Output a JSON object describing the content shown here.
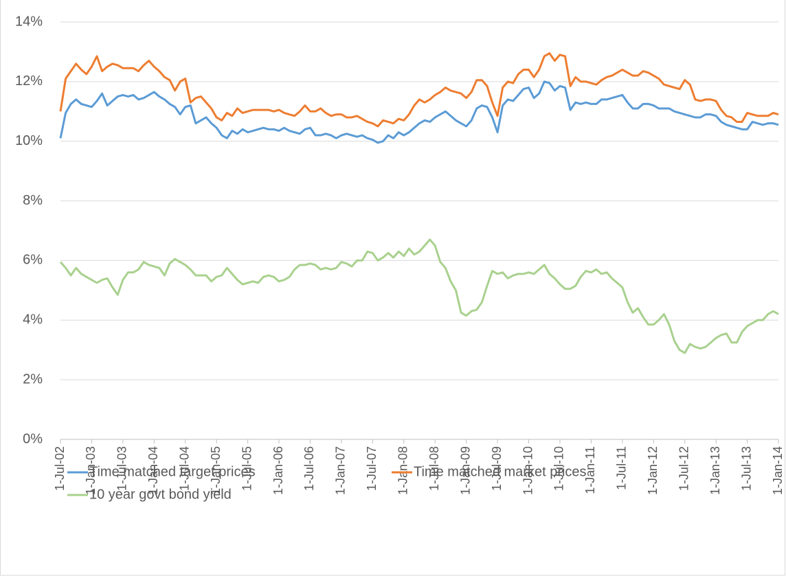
{
  "chart_data": {
    "type": "line",
    "categories": [
      "1-Jul-02",
      null,
      null,
      null,
      null,
      null,
      "1-Jan-03",
      null,
      null,
      null,
      null,
      null,
      "1-Jul-03",
      null,
      null,
      null,
      null,
      null,
      "1-Jan-04",
      null,
      null,
      null,
      null,
      null,
      "1-Jul-04",
      null,
      null,
      null,
      null,
      null,
      "1-Jan-05",
      null,
      null,
      null,
      null,
      null,
      "1-Jul-05",
      null,
      null,
      null,
      null,
      null,
      "1-Jan-06",
      null,
      null,
      null,
      null,
      null,
      "1-Jul-06",
      null,
      null,
      null,
      null,
      null,
      "1-Jan-07",
      null,
      null,
      null,
      null,
      null,
      "1-Jul-07",
      null,
      null,
      null,
      null,
      null,
      "1-Jan-08",
      null,
      null,
      null,
      null,
      null,
      "1-Jul-08",
      null,
      null,
      null,
      null,
      null,
      "1-Jan-09",
      null,
      null,
      null,
      null,
      null,
      "1-Jul-09",
      null,
      null,
      null,
      null,
      null,
      "1-Jan-10",
      null,
      null,
      null,
      null,
      null,
      "1-Jul-10",
      null,
      null,
      null,
      null,
      null,
      "1-Jan-11",
      null,
      null,
      null,
      null,
      null,
      "1-Jul-11",
      null,
      null,
      null,
      null,
      null,
      "1-Jan-12",
      null,
      null,
      null,
      null,
      null,
      "1-Jul-12",
      null,
      null,
      null,
      null,
      null,
      "1-Jan-13",
      null,
      null,
      null,
      null,
      null,
      "1-Jul-13",
      null,
      null,
      null,
      null,
      null,
      "1-Jan-14"
    ],
    "series": [
      {
        "name": "Time matched target prices",
        "color": "#5b9bd5",
        "values": [
          10.1,
          10.95,
          11.25,
          11.4,
          11.25,
          11.2,
          11.15,
          11.35,
          11.6,
          11.2,
          11.35,
          11.5,
          11.55,
          11.5,
          11.55,
          11.4,
          11.45,
          11.55,
          11.65,
          11.5,
          11.4,
          11.25,
          11.15,
          10.9,
          11.15,
          11.2,
          10.6,
          10.7,
          10.8,
          10.6,
          10.45,
          10.2,
          10.1,
          10.35,
          10.25,
          10.4,
          10.3,
          10.35,
          10.4,
          10.45,
          10.4,
          10.4,
          10.35,
          10.45,
          10.35,
          10.3,
          10.25,
          10.4,
          10.45,
          10.2,
          10.2,
          10.25,
          10.2,
          10.1,
          10.2,
          10.25,
          10.2,
          10.15,
          10.2,
          10.1,
          10.05,
          9.95,
          10.0,
          10.2,
          10.1,
          10.3,
          10.2,
          10.3,
          10.45,
          10.6,
          10.7,
          10.65,
          10.8,
          10.9,
          11.0,
          10.85,
          10.7,
          10.6,
          10.5,
          10.7,
          11.1,
          11.2,
          11.15,
          10.8,
          10.3,
          11.2,
          11.4,
          11.35,
          11.55,
          11.75,
          11.8,
          11.45,
          11.6,
          12.0,
          11.95,
          11.7,
          11.85,
          11.8,
          11.05,
          11.3,
          11.25,
          11.3,
          11.25,
          11.25,
          11.4,
          11.4,
          11.45,
          11.5,
          11.55,
          11.3,
          11.1,
          11.1,
          11.25,
          11.25,
          11.2,
          11.1,
          11.1,
          11.1,
          11.0,
          10.95,
          10.9,
          10.85,
          10.8,
          10.8,
          10.9,
          10.9,
          10.85,
          10.65,
          10.55,
          10.5,
          10.45,
          10.4,
          10.4,
          10.65,
          10.6,
          10.55,
          10.6,
          10.6,
          10.55
        ]
      },
      {
        "name": "Time matched market prices",
        "color": "#ed7d31",
        "values": [
          11.0,
          12.1,
          12.35,
          12.6,
          12.4,
          12.25,
          12.5,
          12.85,
          12.35,
          12.5,
          12.6,
          12.55,
          12.45,
          12.45,
          12.45,
          12.35,
          12.55,
          12.7,
          12.5,
          12.35,
          12.15,
          12.05,
          11.7,
          12.0,
          12.1,
          11.3,
          11.45,
          11.5,
          11.3,
          11.1,
          10.8,
          10.7,
          10.95,
          10.85,
          11.1,
          10.95,
          11.0,
          11.05,
          11.05,
          11.05,
          11.05,
          11.0,
          11.05,
          10.95,
          10.9,
          10.85,
          11.0,
          11.2,
          11.0,
          11.0,
          11.1,
          10.95,
          10.85,
          10.9,
          10.9,
          10.8,
          10.8,
          10.85,
          10.75,
          10.65,
          10.6,
          10.5,
          10.7,
          10.65,
          10.6,
          10.75,
          10.7,
          10.9,
          11.2,
          11.4,
          11.3,
          11.4,
          11.55,
          11.65,
          11.8,
          11.7,
          11.65,
          11.6,
          11.45,
          11.65,
          12.05,
          12.05,
          11.85,
          11.3,
          10.85,
          11.8,
          12.0,
          11.95,
          12.25,
          12.4,
          12.4,
          12.15,
          12.4,
          12.85,
          12.95,
          12.7,
          12.9,
          12.85,
          11.85,
          12.15,
          12.0,
          12.0,
          11.95,
          11.9,
          12.05,
          12.15,
          12.2,
          12.3,
          12.4,
          12.3,
          12.2,
          12.2,
          12.35,
          12.3,
          12.2,
          12.1,
          11.9,
          11.85,
          11.8,
          11.75,
          12.05,
          11.9,
          11.4,
          11.35,
          11.4,
          11.4,
          11.35,
          11.05,
          10.85,
          10.8,
          10.65,
          10.65,
          10.95,
          10.9,
          10.85,
          10.85,
          10.85,
          10.95,
          10.9
        ]
      },
      {
        "name": "10 year govt bond yield",
        "color": "#a9d18e",
        "values": [
          5.95,
          5.75,
          5.5,
          5.75,
          5.55,
          5.45,
          5.35,
          5.25,
          5.35,
          5.4,
          5.1,
          4.85,
          5.35,
          5.6,
          5.6,
          5.7,
          5.95,
          5.85,
          5.8,
          5.75,
          5.5,
          5.9,
          6.05,
          5.95,
          5.85,
          5.7,
          5.5,
          5.5,
          5.5,
          5.3,
          5.45,
          5.5,
          5.75,
          5.55,
          5.35,
          5.2,
          5.25,
          5.3,
          5.25,
          5.45,
          5.5,
          5.45,
          5.3,
          5.35,
          5.45,
          5.7,
          5.85,
          5.85,
          5.9,
          5.85,
          5.7,
          5.75,
          5.7,
          5.75,
          5.95,
          5.9,
          5.8,
          6.0,
          6.0,
          6.3,
          6.25,
          6.0,
          6.1,
          6.25,
          6.1,
          6.3,
          6.15,
          6.4,
          6.2,
          6.3,
          6.5,
          6.7,
          6.5,
          5.95,
          5.75,
          5.3,
          5.0,
          4.25,
          4.15,
          4.3,
          4.35,
          4.6,
          5.15,
          5.65,
          5.55,
          5.6,
          5.4,
          5.5,
          5.55,
          5.55,
          5.6,
          5.55,
          5.7,
          5.85,
          5.55,
          5.4,
          5.2,
          5.05,
          5.05,
          5.15,
          5.45,
          5.65,
          5.6,
          5.7,
          5.55,
          5.6,
          5.4,
          5.25,
          5.1,
          4.6,
          4.25,
          4.4,
          4.1,
          3.85,
          3.85,
          4.0,
          4.2,
          3.85,
          3.3,
          3.0,
          2.9,
          3.2,
          3.1,
          3.05,
          3.1,
          3.25,
          3.4,
          3.5,
          3.55,
          3.25,
          3.25,
          3.6,
          3.8,
          3.9,
          4.0,
          4.0,
          4.2,
          4.3,
          4.2
        ]
      }
    ],
    "ylim": [
      0,
      14
    ],
    "yticks": [
      {
        "value": 0,
        "label": "0%"
      },
      {
        "value": 2,
        "label": "2%"
      },
      {
        "value": 4,
        "label": "4%"
      },
      {
        "value": 6,
        "label": "6%"
      },
      {
        "value": 8,
        "label": "8%"
      },
      {
        "value": 10,
        "label": "10%"
      },
      {
        "value": 12,
        "label": "12%"
      },
      {
        "value": 14,
        "label": "14%"
      }
    ],
    "grid": true,
    "legend": "bottom"
  }
}
